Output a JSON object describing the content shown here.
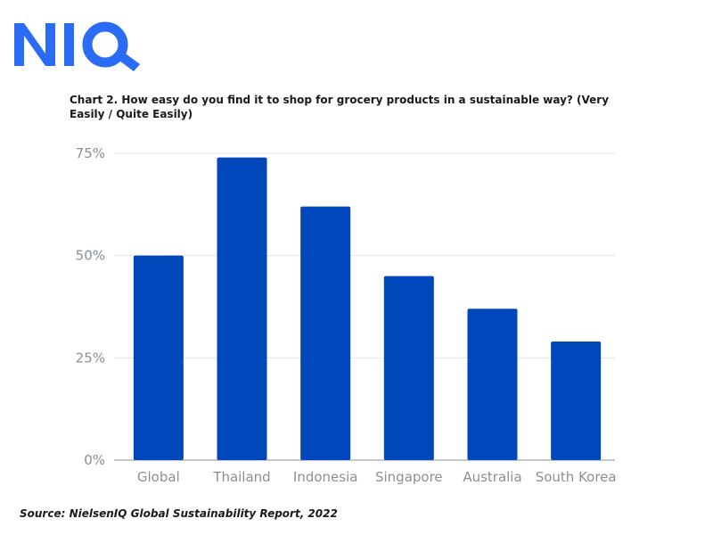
{
  "logo": {
    "text": "NIQ",
    "color": "#2b6cf6"
  },
  "source": "Source: NielsenIQ Global Sustainability Report, 2022",
  "chart_data": {
    "type": "bar",
    "title": "Chart 2. How easy do you find it to shop for grocery products in a sustainable way? (Very Easily / Quite Easily)",
    "xlabel": "",
    "ylabel": "",
    "categories": [
      "Global",
      "Thailand",
      "Indonesia",
      "Singapore",
      "Australia",
      "South Korea"
    ],
    "values": [
      50,
      74,
      62,
      45,
      37,
      29
    ],
    "unit": "%",
    "ylim": [
      0,
      75
    ],
    "yticks": [
      0,
      25,
      50,
      75
    ],
    "ytick_labels": [
      "0%",
      "25%",
      "50%",
      "75%"
    ],
    "grid": true,
    "legend": "none",
    "bar_color": "#0047bb",
    "grid_color": "#e3e5e8",
    "axis_color": "#8a8f99"
  }
}
